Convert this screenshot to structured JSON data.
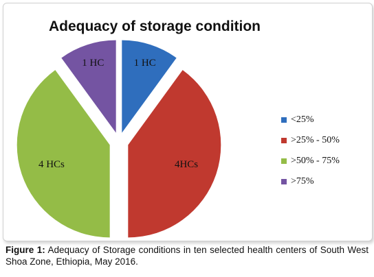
{
  "chart_data": {
    "type": "pie",
    "title": "Adequacy of storage condition",
    "categories": [
      "<25%",
      ">25% - 50%",
      ">50% - 75%",
      ">75%"
    ],
    "values": [
      1,
      4,
      4,
      1
    ],
    "slice_labels": [
      "1 HC",
      "4HCs",
      "4 HCs",
      "1 HC"
    ],
    "colors": [
      "#2f6ebd",
      "#c0392f",
      "#94bc47",
      "#7454a2"
    ],
    "legend": {
      "position": "right",
      "entries": [
        "<25%",
        ">25% - 50%",
        ">50% - 75%",
        ">75%"
      ]
    },
    "exploded": true
  },
  "caption": {
    "label": "Figure 1:",
    "text": " Adequacy of Storage conditions in ten selected health centers of South West Shoa Zone, Ethiopia, May 2016."
  }
}
